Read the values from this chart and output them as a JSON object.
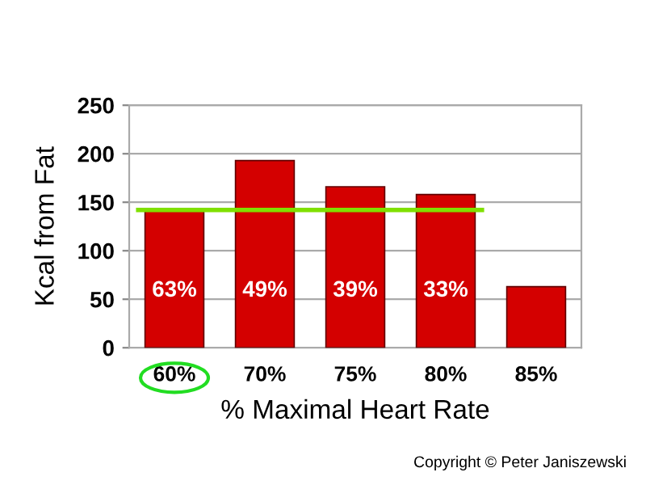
{
  "chart_data": {
    "type": "bar",
    "xlabel": "% Maximal Heart Rate",
    "ylabel": "Kcal from Fat",
    "categories": [
      "60%",
      "70%",
      "75%",
      "80%",
      "85%"
    ],
    "values": [
      142,
      193,
      166,
      158,
      63
    ],
    "color": "#d40000",
    "ylim": [
      0,
      250
    ],
    "yticks": [
      0,
      50,
      100,
      150,
      200,
      250
    ],
    "grid": "y",
    "ref_lines": [
      {
        "axis": "y",
        "value": 142,
        "color": "#80e000"
      }
    ],
    "annotations": [
      "63%",
      "49%",
      "39%",
      "33%",
      "Copyright © Peter Janiszewski"
    ]
  }
}
